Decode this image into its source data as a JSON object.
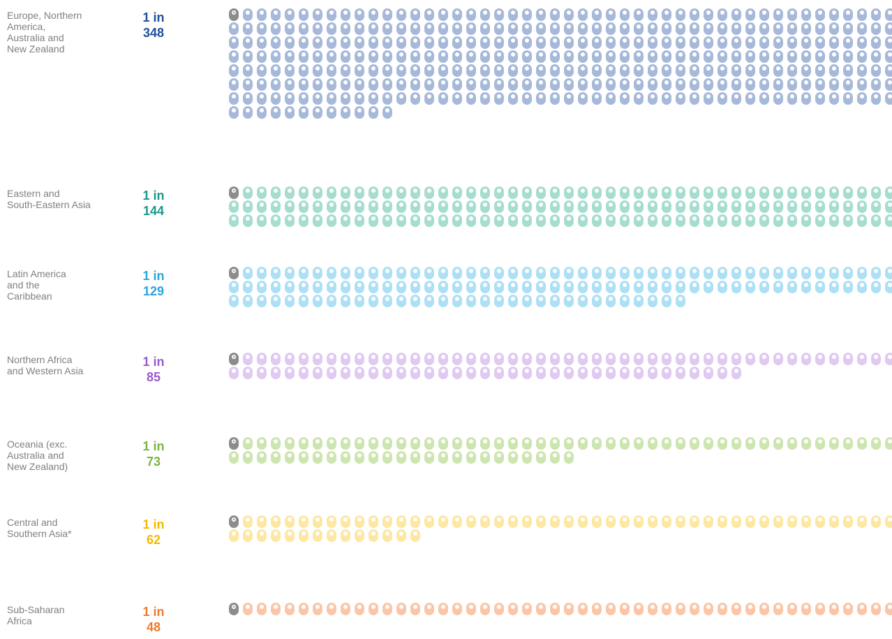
{
  "chart_data": {
    "type": "pictogram",
    "ratio_prefix": "1 in",
    "highlight_color": "#8c8c8c",
    "series": [
      {
        "name": "Europe, Northern\nAmerica,\nAustralia and\nNew Zealand",
        "value": 348,
        "color": "#a7b9d9",
        "label_color": "#1f4e9a"
      },
      {
        "name": "Eastern and\nSouth-Eastern Asia",
        "value": 144,
        "color": "#a6ddd0",
        "label_color": "#1a998a"
      },
      {
        "name": "Latin America\nand the\nCaribbean",
        "value": 129,
        "color": "#ade0f5",
        "label_color": "#2aa6dc"
      },
      {
        "name": "Northern Africa\nand Western Asia",
        "value": 85,
        "color": "#dfcaf1",
        "label_color": "#9b59cf"
      },
      {
        "name": "Oceania (exc.\nAustralia and\nNew Zealand)",
        "value": 73,
        "color": "#cde5ae",
        "label_color": "#79b545"
      },
      {
        "name": "Central and\nSouthern Asia*",
        "value": 62,
        "color": "#fde7a3",
        "label_color": "#f4b900"
      },
      {
        "name": "Sub-Saharan\nAfrica",
        "value": 48,
        "color": "#fbc6a7",
        "label_color": "#ef7a2b"
      }
    ]
  }
}
